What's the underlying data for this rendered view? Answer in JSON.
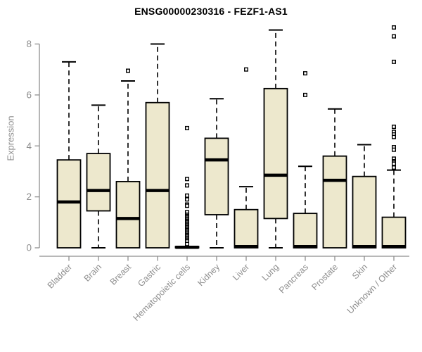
{
  "chart_data": {
    "type": "boxplot",
    "title": "ENSG00000230316 - FEZF1-AS1",
    "ylabel": "Expression",
    "xlabel": "",
    "ylim": [
      0,
      8
    ],
    "yticks": [
      0,
      2,
      4,
      6,
      8
    ],
    "grid": false,
    "legend": "none",
    "categories": [
      "Bladder",
      "Brain",
      "Breast",
      "Gastric",
      "Hematopoietic cells",
      "Kidney",
      "Liver",
      "Lung",
      "Pancreas",
      "Prostate",
      "Skin",
      "Unknown / Other"
    ],
    "boxes": [
      {
        "category": "Bladder",
        "whisker_low": 0,
        "q1": 0,
        "median": 1.8,
        "q3": 3.45,
        "whisker_high": 7.3,
        "outliers": []
      },
      {
        "category": "Brain",
        "whisker_low": 0,
        "q1": 1.45,
        "median": 2.25,
        "q3": 3.7,
        "whisker_high": 5.6,
        "outliers": []
      },
      {
        "category": "Breast",
        "whisker_low": 0,
        "q1": 0,
        "median": 1.15,
        "q3": 2.6,
        "whisker_high": 6.55,
        "outliers": [
          6.95
        ]
      },
      {
        "category": "Gastric",
        "whisker_low": 0,
        "q1": 0,
        "median": 2.25,
        "q3": 5.7,
        "whisker_high": 8.0,
        "outliers": []
      },
      {
        "category": "Hematopoietic cells",
        "whisker_low": 0,
        "q1": 0,
        "median": 0.02,
        "q3": 0.05,
        "whisker_high": 0.05,
        "outliers": [
          4.7,
          2.7,
          2.45,
          2.05,
          1.9,
          1.7,
          1.65,
          1.4,
          1.3,
          1.25,
          1.2,
          1.15,
          1.1,
          1.05,
          1.0,
          0.95,
          0.9,
          0.85,
          0.8,
          0.75,
          0.7,
          0.65,
          0.6,
          0.55,
          0.5,
          0.45,
          0.4,
          0.35,
          0.3,
          0.25,
          0.15
        ]
      },
      {
        "category": "Kidney",
        "whisker_low": 0,
        "q1": 1.3,
        "median": 3.45,
        "q3": 4.3,
        "whisker_high": 5.85,
        "outliers": []
      },
      {
        "category": "Liver",
        "whisker_low": 0,
        "q1": 0,
        "median": 0.05,
        "q3": 1.5,
        "whisker_high": 2.4,
        "outliers": [
          7.0
        ]
      },
      {
        "category": "Lung",
        "whisker_low": 0,
        "q1": 1.15,
        "median": 2.85,
        "q3": 6.25,
        "whisker_high": 8.55,
        "outliers": []
      },
      {
        "category": "Pancreas",
        "whisker_low": 0,
        "q1": 0,
        "median": 0.05,
        "q3": 1.35,
        "whisker_high": 3.2,
        "outliers": [
          6.85,
          6.0
        ]
      },
      {
        "category": "Prostate",
        "whisker_low": 0,
        "q1": 0,
        "median": 2.65,
        "q3": 3.6,
        "whisker_high": 5.45,
        "outliers": []
      },
      {
        "category": "Skin",
        "whisker_low": 0,
        "q1": 0,
        "median": 0.05,
        "q3": 2.8,
        "whisker_high": 4.05,
        "outliers": []
      },
      {
        "category": "Unknown / Other",
        "whisker_low": 0,
        "q1": 0,
        "median": 0.05,
        "q3": 1.2,
        "whisker_high": 3.05,
        "outliers": [
          8.65,
          8.3,
          7.3,
          4.75,
          4.55,
          4.45,
          4.35,
          3.95,
          3.85,
          3.5,
          3.4,
          3.35,
          3.3,
          3.15
        ]
      }
    ],
    "colors": {
      "box_fill": "#EDE8CD",
      "box_stroke": "#000000",
      "median": "#000000",
      "whisker": "#000000",
      "outlier_stroke": "#000000",
      "outlier_fill": "#ffffff",
      "axis": "#8e8e8e",
      "tick_label": "#8e8e8e",
      "title": "#000000"
    }
  }
}
